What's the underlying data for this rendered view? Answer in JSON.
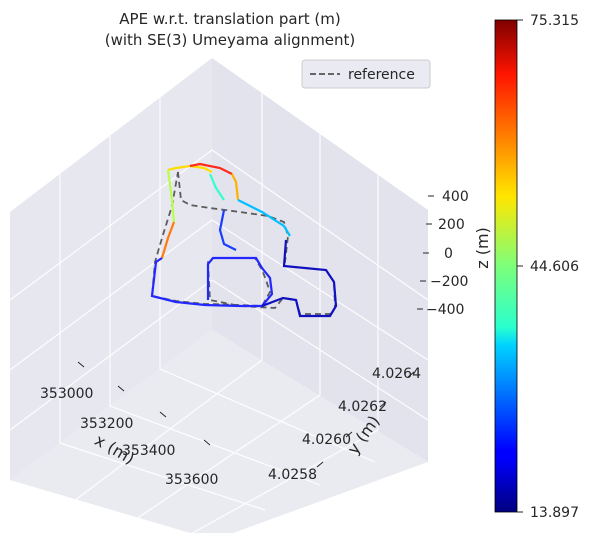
{
  "chart_data": {
    "type": "line",
    "title": "APE w.r.t. translation part (m)",
    "subtitle": "(with SE(3) Umeyama alignment)",
    "xlabel": "x (m)",
    "ylabel": "y (m)",
    "zlabel": "z (m)",
    "x_ticks": [
      "353000",
      "353200",
      "353400",
      "353600"
    ],
    "y_ticks": [
      "4.0258",
      "4.0260",
      "4.0262",
      "4.0264"
    ],
    "z_ticks": [
      "400",
      "200",
      "0",
      "−200",
      "−400"
    ],
    "legend": [
      {
        "label": "reference",
        "style": "dashed",
        "color": "#666666"
      }
    ],
    "colorbar": {
      "min": 13.897,
      "max": 75.315,
      "ticks": [
        "75.315",
        "44.606",
        "13.897"
      ],
      "tick_values": [
        75.315,
        44.606,
        13.897
      ],
      "colormap": "jet"
    },
    "series": [
      {
        "name": "reference",
        "kind": "3d-trajectory",
        "style": "dashed"
      },
      {
        "name": "APE-colored estimate",
        "kind": "3d-trajectory",
        "style": "colormap"
      }
    ]
  }
}
